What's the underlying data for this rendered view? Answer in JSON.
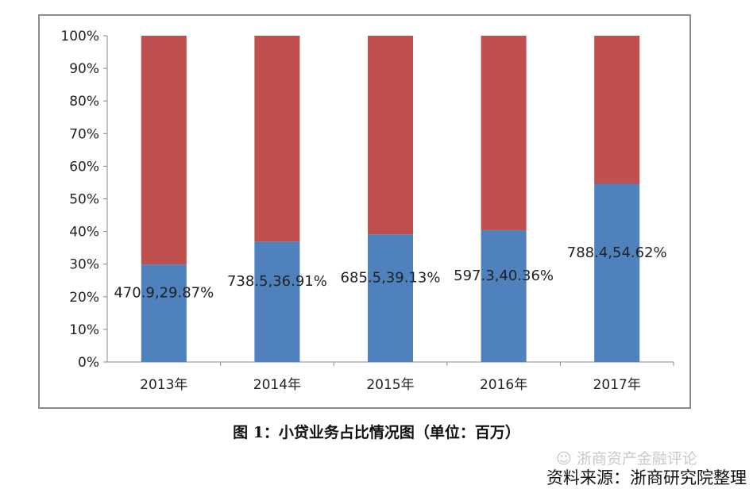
{
  "chart_data": {
    "type": "bar",
    "stacked": "percent",
    "categories": [
      "2013年",
      "2014年",
      "2015年",
      "2016年",
      "2017年"
    ],
    "series": [
      {
        "values": [
          29.87,
          36.91,
          39.13,
          40.36,
          54.62
        ],
        "color": "#4f81bd"
      },
      {
        "values": [
          70.13,
          63.09,
          60.87,
          59.64,
          45.38
        ],
        "color": "#c0504d"
      }
    ],
    "data_labels": [
      "470.9,29.87%",
      "738.5,36.91%",
      "685.5,39.13%",
      "597.3,40.36%",
      "788.4,54.62%"
    ],
    "yticks": [
      "0%",
      "10%",
      "20%",
      "30%",
      "40%",
      "50%",
      "60%",
      "70%",
      "80%",
      "90%",
      "100%"
    ],
    "ylim": [
      0,
      100
    ],
    "grid": false
  },
  "caption": "图 1：小贷业务占比情况图（单位：百万）",
  "watermark": "浙商资产金融评论",
  "source": "资料来源：浙商研究院整理"
}
